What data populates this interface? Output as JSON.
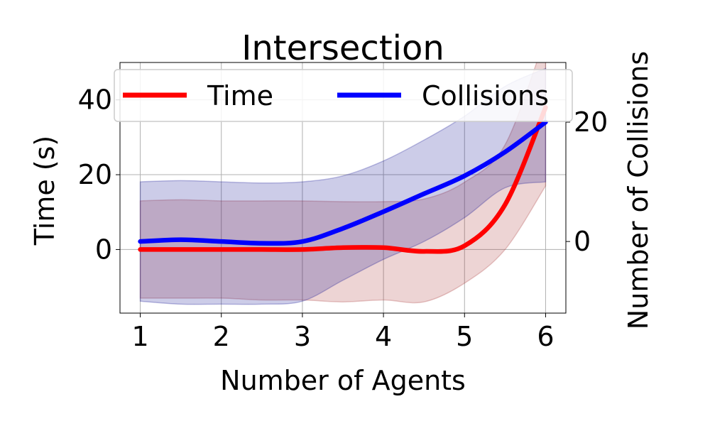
{
  "chart_data": {
    "type": "line",
    "title": "Intersection",
    "xlabel": "Number of Agents",
    "ylabel": "Time (s)",
    "y2label": "Number of Collisions",
    "x": [
      1,
      2,
      3,
      4,
      5,
      6
    ],
    "xticks": [
      "1",
      "2",
      "3",
      "4",
      "5",
      "6"
    ],
    "xlim": [
      0.75,
      6.25
    ],
    "ylim": [
      -17,
      50
    ],
    "yticks": [
      "0",
      "20",
      "40"
    ],
    "y2lim": [
      -12,
      30
    ],
    "y2ticks": [
      "0",
      "20"
    ],
    "grid": true,
    "legend": "top, two columns",
    "series": [
      {
        "name": "Time",
        "axis": "left",
        "color": "#ff0000",
        "band_color": "#a52a2a",
        "x": [
          1,
          1.5,
          2,
          2.5,
          3,
          3.5,
          4,
          4.5,
          5,
          5.5,
          6
        ],
        "values": [
          0,
          0,
          0,
          0,
          0,
          0.5,
          0.5,
          -0.5,
          1,
          12,
          38
        ],
        "lower": [
          -13,
          -13,
          -13,
          -13.5,
          -13.5,
          -14,
          -13.5,
          -14,
          -9,
          0,
          17
        ],
        "upper": [
          13,
          13.3,
          13,
          13,
          13,
          12.8,
          12.8,
          13.5,
          18,
          28,
          57
        ]
      },
      {
        "name": "Collisions",
        "axis": "right",
        "color": "#0000ff",
        "band_color": "#00008b",
        "x": [
          1,
          1.5,
          2,
          2.5,
          3,
          3.5,
          4,
          4.5,
          5,
          5.5,
          6
        ],
        "values": [
          0,
          0.3,
          0,
          -0.3,
          0,
          2.2,
          5,
          8,
          11,
          15,
          20
        ],
        "lower": [
          -10,
          -10.5,
          -10.5,
          -10.5,
          -10,
          -6.5,
          -3,
          0,
          4,
          9,
          10
        ],
        "upper": [
          10,
          10.2,
          10,
          9.8,
          10,
          11,
          13.5,
          17,
          21,
          26,
          29
        ]
      }
    ]
  }
}
